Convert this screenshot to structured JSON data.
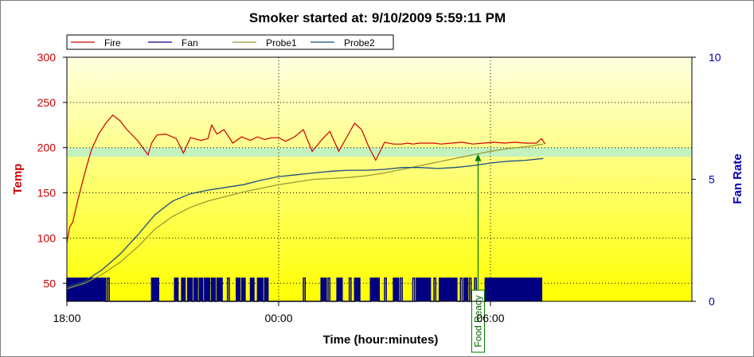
{
  "chart_data": {
    "type": "line",
    "title": "Smoker started at: 9/10/2009 5:59:11 PM",
    "xlabel": "Time (hour:minutes)",
    "ylabel": "Temp",
    "y2label": "Fan Rate",
    "xlim_hours": [
      18,
      30
    ],
    "x_ticks": [
      {
        "h": 18,
        "label": "18:00"
      },
      {
        "h": 24,
        "label": "00:00"
      },
      {
        "h": 30,
        "label": "06:00"
      }
    ],
    "ylim": [
      30,
      300
    ],
    "y_ticks": [
      50,
      100,
      150,
      200,
      250,
      300
    ],
    "y2lim": [
      0,
      10
    ],
    "y2_ticks": [
      0,
      5,
      10
    ],
    "grid": true,
    "legend_position": "top-left",
    "colors": {
      "Fire": "#cc0000",
      "Fan": "#000080",
      "Probe1": "#999933",
      "Probe2": "#1a4d80",
      "Food Ready": "#007a00",
      "temp_axis": "#cc0000",
      "fan_axis": "#0000aa",
      "band": "#b8f0c8"
    },
    "target_band": [
      190,
      200
    ],
    "series": [
      {
        "name": "Fire",
        "axis": "left",
        "x": [
          18.0,
          18.08,
          18.17,
          18.25,
          18.35,
          18.45,
          18.55,
          18.7,
          18.9,
          19.1,
          19.3,
          19.5,
          19.7,
          20.0,
          20.3,
          20.4,
          20.55,
          20.8,
          21.1,
          21.3,
          21.5,
          21.8,
          22.0,
          22.1,
          22.25,
          22.45,
          22.7,
          22.95,
          23.2,
          23.4,
          23.6,
          23.8,
          24.0,
          24.2,
          24.45,
          24.7,
          24.95,
          25.25,
          25.45,
          25.7,
          25.95,
          26.15,
          26.35,
          26.55,
          26.75,
          27.0,
          27.25,
          27.5,
          27.65,
          27.8,
          28.0,
          28.2,
          28.4,
          28.6,
          28.9,
          29.2,
          29.5,
          29.8,
          30.1,
          30.4,
          30.7,
          31.0,
          31.3,
          31.45,
          31.55
        ],
        "values": [
          95,
          112,
          118,
          132,
          148,
          163,
          178,
          198,
          215,
          227,
          236,
          230,
          220,
          208,
          192,
          205,
          214,
          215,
          210,
          194,
          211,
          208,
          210,
          225,
          215,
          220,
          205,
          212,
          208,
          212,
          209,
          211,
          211,
          207,
          212,
          220,
          196,
          210,
          218,
          196,
          213,
          227,
          220,
          201,
          186,
          206,
          204,
          204,
          205,
          204,
          205,
          205,
          205,
          204,
          205,
          206,
          204,
          205,
          206,
          205,
          206,
          205,
          205,
          210,
          204
        ]
      },
      {
        "name": "Probe1",
        "axis": "left",
        "x": [
          18.0,
          18.5,
          19.0,
          19.5,
          20.0,
          20.5,
          21.0,
          21.5,
          22.0,
          22.5,
          23.0,
          23.5,
          24.0,
          24.5,
          25.0,
          25.5,
          26.0,
          26.5,
          27.0,
          27.5,
          28.0,
          28.5,
          29.0,
          29.5,
          30.0,
          30.5,
          31.0,
          31.5
        ],
        "values": [
          44,
          50,
          60,
          73,
          90,
          110,
          124,
          134,
          141,
          146,
          151,
          155,
          159,
          162,
          165,
          166,
          167,
          169,
          172,
          176,
          180,
          184,
          188,
          192,
          196,
          199,
          201,
          204
        ]
      },
      {
        "name": "Probe2",
        "axis": "left",
        "x": [
          18.0,
          18.5,
          19.0,
          19.5,
          20.0,
          20.5,
          21.0,
          21.5,
          22.0,
          22.5,
          23.0,
          23.5,
          24.0,
          24.5,
          25.0,
          25.5,
          26.0,
          26.5,
          27.0,
          27.5,
          28.0,
          28.5,
          29.0,
          29.5,
          30.0,
          30.5,
          31.0,
          31.5
        ],
        "values": [
          46,
          52,
          65,
          82,
          103,
          126,
          141,
          149,
          153,
          156,
          159,
          164,
          168,
          170,
          172,
          174,
          175,
          175,
          176,
          178,
          178,
          177,
          178,
          180,
          183,
          185,
          186,
          188
        ]
      },
      {
        "name": "Fan",
        "axis": "right",
        "on_intervals": [
          [
            18.0,
            19.1
          ],
          [
            19.15,
            19.2
          ],
          [
            20.4,
            20.6
          ],
          [
            21.05,
            21.15
          ],
          [
            21.25,
            21.35
          ],
          [
            21.42,
            21.55
          ],
          [
            21.6,
            21.7
          ],
          [
            21.75,
            21.85
          ],
          [
            21.9,
            22.05
          ],
          [
            22.1,
            22.2
          ],
          [
            22.25,
            22.4
          ],
          [
            22.55,
            22.6
          ],
          [
            22.8,
            22.9
          ],
          [
            22.95,
            23.05
          ],
          [
            23.2,
            23.3
          ],
          [
            23.4,
            23.55
          ],
          [
            23.6,
            23.7
          ],
          [
            24.7,
            24.75
          ],
          [
            25.2,
            25.35
          ],
          [
            25.4,
            25.45
          ],
          [
            25.65,
            25.8
          ],
          [
            26.0,
            26.05
          ],
          [
            26.15,
            26.3
          ],
          [
            26.6,
            26.85
          ],
          [
            27.0,
            27.05
          ],
          [
            27.25,
            27.4
          ],
          [
            27.45,
            27.5
          ],
          [
            27.8,
            27.85
          ],
          [
            27.9,
            28.3
          ],
          [
            28.4,
            28.45
          ],
          [
            28.55,
            29.05
          ],
          [
            29.15,
            29.2
          ],
          [
            29.25,
            29.35
          ],
          [
            29.4,
            29.45
          ],
          [
            29.55,
            29.6
          ],
          [
            29.85,
            31.45
          ]
        ],
        "on_value": 0.95,
        "off_value": 0
      }
    ],
    "annotations": [
      {
        "label": "Food Ready",
        "x_hours": 29.65,
        "y_temp": 193
      }
    ]
  }
}
